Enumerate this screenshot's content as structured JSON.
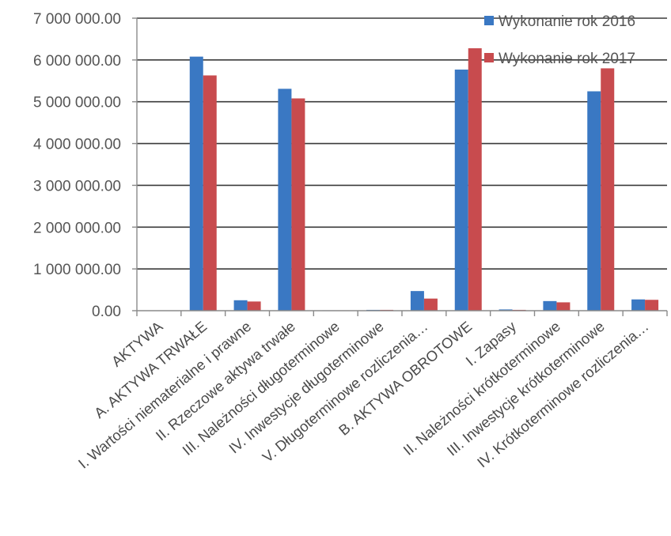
{
  "chart_data": {
    "type": "bar",
    "title": "",
    "xlabel": "",
    "ylabel": "",
    "ylim": [
      0,
      7000000
    ],
    "yticks": [
      0,
      1000000,
      2000000,
      3000000,
      4000000,
      5000000,
      6000000,
      7000000
    ],
    "ytick_labels": [
      "0.00",
      "1 000 000.00",
      "2 000 000.00",
      "3 000 000.00",
      "4 000 000.00",
      "5 000 000.00",
      "6 000 000.00",
      "7 000 000.00"
    ],
    "grid": true,
    "legend_position": "top-right",
    "categories": [
      "AKTYWA",
      "A. AKTYWA TRWAŁE",
      "I. Wartości niematerialne i prawne",
      "II. Rzeczowe aktywa trwałe",
      "III. Należności długoterminowe",
      "IV. Inwestycje długoterminowe",
      "V. Długoterminowe rozliczenia…",
      "B. AKTYWA OBROTOWE",
      "I. Zapasy",
      "II. Należności krótkoterminowe",
      "III. Inwestycje krótkoterminowe",
      "IV. Krótkoterminowe rozliczenia…"
    ],
    "series": [
      {
        "name": "Wykonanie rok 2016",
        "color": "#3a78c3",
        "values": [
          0,
          6080000,
          250000,
          5310000,
          10000,
          20000,
          470000,
          5770000,
          30000,
          230000,
          5250000,
          270000
        ]
      },
      {
        "name": "Wykonanie rok 2017",
        "color": "#c84b4e",
        "values": [
          0,
          5630000,
          220000,
          5080000,
          10000,
          20000,
          290000,
          6280000,
          20000,
          200000,
          5800000,
          260000
        ]
      }
    ]
  }
}
